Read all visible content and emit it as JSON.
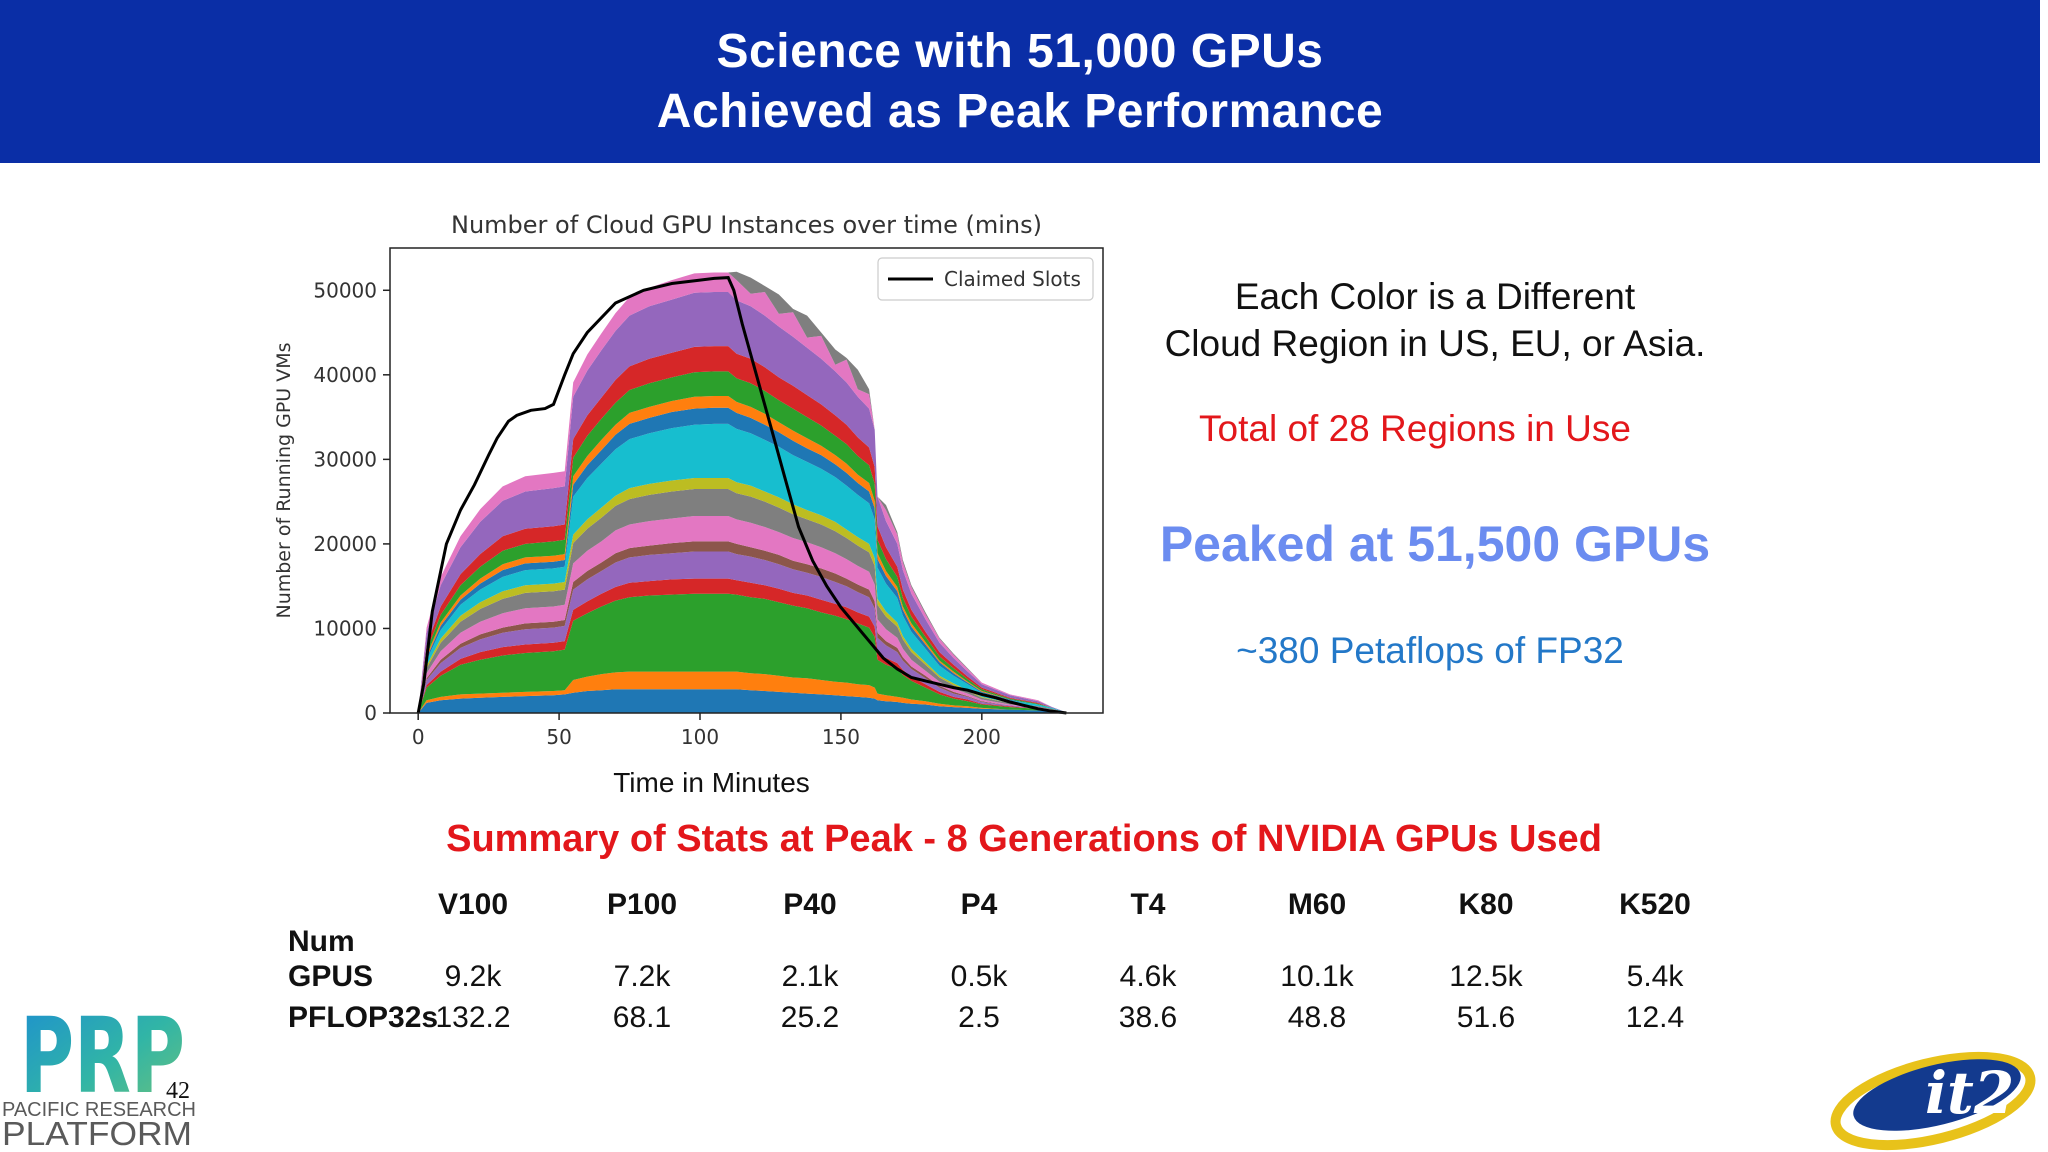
{
  "header": {
    "title_line1": "Science with 51,000 GPUs",
    "title_line2": "Achieved as Peak Performance"
  },
  "chart_data": {
    "type": "area",
    "title": "Number of Cloud GPU Instances over time (mins)",
    "ylabel": "Number of Running GPU VMs",
    "xlabel": "Time in Minutes",
    "xlim": [
      -10,
      243
    ],
    "ylim": [
      0,
      55000
    ],
    "xticks": [
      0,
      50,
      100,
      150,
      200
    ],
    "yticks": [
      0,
      10000,
      20000,
      30000,
      40000,
      50000
    ],
    "legend": {
      "label": "Claimed Slots",
      "position": "top-right"
    },
    "x": [
      0,
      3,
      8,
      15,
      22,
      30,
      38,
      48,
      52,
      55,
      60,
      65,
      70,
      75,
      82,
      90,
      98,
      105,
      110,
      113,
      118,
      123,
      128,
      133,
      138,
      143,
      148,
      152,
      156,
      160,
      162,
      163,
      166,
      170,
      172,
      175,
      180,
      185,
      190,
      195,
      200,
      210,
      220,
      225,
      230
    ],
    "series": [
      {
        "color": "#1f77b4",
        "values": [
          0,
          1200,
          1500,
          1700,
          1800,
          1900,
          2000,
          2100,
          2200,
          2400,
          2600,
          2700,
          2800,
          2800,
          2800,
          2800,
          2800,
          2800,
          2800,
          2800,
          2700,
          2600,
          2500,
          2400,
          2300,
          2200,
          2100,
          2000,
          1900,
          1800,
          1700,
          1500,
          1400,
          1300,
          1200,
          1100,
          1000,
          800,
          700,
          600,
          500,
          400,
          300,
          200,
          100
        ]
      },
      {
        "color": "#ff7f0e",
        "values": [
          0,
          300,
          400,
          500,
          500,
          500,
          500,
          500,
          500,
          1500,
          1700,
          1900,
          2000,
          2100,
          2100,
          2100,
          2100,
          2100,
          2100,
          2100,
          2000,
          2000,
          1900,
          1800,
          1800,
          1700,
          1600,
          1600,
          1500,
          1500,
          1300,
          800,
          700,
          600,
          600,
          500,
          400,
          300,
          200,
          200,
          100,
          0,
          0,
          0,
          0
        ]
      },
      {
        "color": "#2ca02c",
        "values": [
          0,
          1500,
          2500,
          3500,
          4000,
          4400,
          4600,
          4700,
          4800,
          7000,
          7500,
          8000,
          8500,
          8800,
          9000,
          9100,
          9200,
          9200,
          9200,
          9100,
          9000,
          8900,
          8700,
          8500,
          8300,
          8000,
          7800,
          7500,
          7200,
          6800,
          6000,
          4000,
          3600,
          3300,
          2700,
          2200,
          1600,
          1100,
          800,
          600,
          400,
          300,
          200,
          200,
          0
        ]
      },
      {
        "color": "#d62728",
        "values": [
          0,
          300,
          500,
          700,
          900,
          1000,
          1000,
          1000,
          1000,
          1300,
          1400,
          1500,
          1600,
          1700,
          1700,
          1800,
          1800,
          1800,
          1800,
          1700,
          1700,
          1600,
          1600,
          1500,
          1500,
          1500,
          1400,
          1400,
          1300,
          1300,
          1200,
          900,
          800,
          700,
          600,
          500,
          400,
          300,
          200,
          200,
          100,
          100,
          0,
          0,
          0
        ]
      },
      {
        "color": "#9467bd",
        "values": [
          0,
          600,
          1000,
          1300,
          1500,
          1700,
          1800,
          1800,
          1800,
          2400,
          2600,
          2700,
          2900,
          3000,
          3100,
          3100,
          3200,
          3200,
          3200,
          3100,
          3100,
          3000,
          2900,
          2800,
          2700,
          2700,
          2600,
          2500,
          2400,
          2300,
          2200,
          1700,
          1500,
          1300,
          1100,
          900,
          700,
          500,
          400,
          300,
          200,
          100,
          100,
          0,
          0
        ]
      },
      {
        "color": "#8c564b",
        "values": [
          0,
          200,
          400,
          500,
          600,
          600,
          700,
          700,
          700,
          900,
          1000,
          1000,
          1100,
          1100,
          1100,
          1200,
          1200,
          1200,
          1200,
          1200,
          1100,
          1100,
          1100,
          1000,
          1000,
          1000,
          1000,
          900,
          900,
          900,
          800,
          600,
          500,
          500,
          400,
          300,
          300,
          200,
          200,
          100,
          100,
          0,
          0,
          0,
          0
        ]
      },
      {
        "color": "#e377c2",
        "values": [
          0,
          600,
          1000,
          1300,
          1500,
          1700,
          1800,
          1800,
          1800,
          2200,
          2400,
          2500,
          2700,
          2800,
          2900,
          2900,
          3000,
          3000,
          3000,
          2900,
          2900,
          2800,
          2700,
          2700,
          2600,
          2500,
          2400,
          2300,
          2200,
          2100,
          2000,
          1600,
          1400,
          1200,
          1000,
          800,
          600,
          500,
          400,
          300,
          200,
          100,
          100,
          0,
          0
        ]
      },
      {
        "color": "#7f7f7f",
        "values": [
          0,
          600,
          1000,
          1300,
          1500,
          1700,
          1800,
          1800,
          1800,
          2400,
          2600,
          2800,
          2900,
          3000,
          3100,
          3200,
          3200,
          3200,
          3200,
          3100,
          3100,
          3000,
          2900,
          2800,
          2700,
          2700,
          2600,
          2500,
          2400,
          2300,
          2200,
          1700,
          1500,
          1300,
          1100,
          900,
          700,
          500,
          400,
          300,
          200,
          200,
          100,
          100,
          0
        ]
      },
      {
        "color": "#bcbd22",
        "values": [
          0,
          300,
          500,
          700,
          800,
          900,
          900,
          900,
          900,
          1000,
          1100,
          1200,
          1200,
          1300,
          1300,
          1300,
          1300,
          1300,
          1300,
          1300,
          1300,
          1200,
          1200,
          1200,
          1100,
          1100,
          1100,
          1000,
          1000,
          1000,
          900,
          700,
          600,
          500,
          400,
          400,
          300,
          200,
          200,
          100,
          100,
          0,
          0,
          0,
          0
        ]
      },
      {
        "color": "#17becf",
        "values": [
          0,
          600,
          1000,
          1300,
          1500,
          1700,
          1800,
          1800,
          1800,
          4500,
          4900,
          5200,
          5500,
          5800,
          6000,
          6200,
          6300,
          6400,
          6400,
          6300,
          6200,
          6100,
          6000,
          5800,
          5700,
          5500,
          5300,
          5200,
          5000,
          4800,
          4600,
          3700,
          3300,
          2900,
          2400,
          2000,
          1600,
          1200,
          900,
          700,
          500,
          300,
          200,
          100,
          0
        ]
      },
      {
        "color": "#1f77b4",
        "values": [
          0,
          300,
          500,
          600,
          700,
          800,
          800,
          800,
          800,
          1400,
          1500,
          1600,
          1700,
          1800,
          1800,
          1900,
          1900,
          1900,
          1900,
          1900,
          1800,
          1800,
          1700,
          1700,
          1600,
          1600,
          1500,
          1500,
          1400,
          1400,
          1300,
          1000,
          900,
          800,
          700,
          600,
          500,
          400,
          300,
          200,
          100,
          100,
          0,
          0,
          0
        ]
      },
      {
        "color": "#ff7f0e",
        "values": [
          0,
          300,
          400,
          500,
          600,
          700,
          700,
          700,
          700,
          1000,
          1100,
          1200,
          1200,
          1300,
          1300,
          1300,
          1400,
          1400,
          1400,
          1300,
          1300,
          1300,
          1200,
          1200,
          1200,
          1100,
          1100,
          1100,
          1000,
          1000,
          900,
          700,
          600,
          500,
          400,
          400,
          300,
          200,
          200,
          100,
          100,
          0,
          0,
          0,
          0
        ]
      },
      {
        "color": "#2ca02c",
        "values": [
          0,
          600,
          900,
          1200,
          1400,
          1600,
          1600,
          1700,
          1700,
          2200,
          2400,
          2500,
          2600,
          2700,
          2800,
          2800,
          2900,
          2900,
          2900,
          2800,
          2800,
          2700,
          2600,
          2600,
          2500,
          2400,
          2300,
          2300,
          2200,
          2100,
          2000,
          1600,
          1400,
          1200,
          1000,
          800,
          600,
          500,
          400,
          300,
          200,
          100,
          100,
          0,
          0
        ]
      },
      {
        "color": "#d62728",
        "values": [
          0,
          600,
          1000,
          1300,
          1500,
          1700,
          1800,
          1800,
          1800,
          2200,
          2400,
          2500,
          2700,
          2800,
          2900,
          2900,
          3000,
          3000,
          3000,
          2900,
          2900,
          2800,
          2700,
          2700,
          2600,
          2500,
          2400,
          2300,
          2200,
          2100,
          2000,
          1600,
          1400,
          1200,
          1000,
          800,
          600,
          500,
          400,
          300,
          200,
          100,
          100,
          0,
          0
        ]
      },
      {
        "color": "#9467bd",
        "values": [
          0,
          1500,
          2500,
          3200,
          3800,
          4200,
          4400,
          4500,
          4500,
          5000,
          5300,
          5600,
          5800,
          6000,
          6200,
          6300,
          6400,
          6400,
          6400,
          6300,
          6200,
          6100,
          6000,
          5800,
          5600,
          5400,
          5200,
          5000,
          4800,
          4600,
          4400,
          3500,
          3100,
          2700,
          2300,
          1900,
          1500,
          1100,
          800,
          600,
          400,
          300,
          200,
          100,
          0
        ]
      },
      {
        "color": "#e377c2",
        "values": [
          0,
          600,
          1000,
          1300,
          1500,
          1700,
          1800,
          1800,
          1800,
          1700,
          1900,
          2000,
          2100,
          2200,
          2200,
          2300,
          2300,
          2300,
          2300,
          2400,
          1500,
          2800,
          1500,
          2900,
          1200,
          2700,
          800,
          2700,
          900,
          1700,
          0,
          0,
          1300,
          1100,
          900,
          800,
          600,
          500,
          400,
          300,
          200,
          100,
          100,
          0,
          0
        ]
      },
      {
        "color": "#7f7f7f",
        "values": [
          0,
          0,
          0,
          0,
          0,
          0,
          0,
          0,
          0,
          0,
          0,
          0,
          0,
          0,
          0,
          0,
          0,
          0,
          0,
          1000,
          1900,
          700,
          2300,
          400,
          2600,
          400,
          1800,
          200,
          2300,
          600,
          0,
          0,
          600,
          300,
          300,
          200,
          200,
          100,
          100,
          100,
          0,
          0,
          0,
          0,
          0
        ]
      }
    ],
    "claimed_slots": {
      "x": [
        0,
        2,
        5,
        10,
        15,
        20,
        25,
        28,
        32,
        35,
        40,
        45,
        48,
        52,
        55,
        60,
        70,
        80,
        90,
        100,
        105,
        110,
        112,
        115,
        120,
        125,
        130,
        135,
        140,
        145,
        150,
        155,
        160,
        165,
        170,
        175,
        180,
        185,
        190,
        195,
        200,
        205,
        210,
        215,
        220,
        225,
        230
      ],
      "values": [
        0,
        3500,
        12000,
        20000,
        24000,
        27000,
        30500,
        32500,
        34500,
        35200,
        35800,
        36000,
        36500,
        40000,
        42500,
        45000,
        48500,
        50000,
        50800,
        51200,
        51400,
        51500,
        50000,
        46000,
        40000,
        34000,
        28000,
        22000,
        18000,
        15000,
        12500,
        10500,
        8500,
        6500,
        5200,
        4200,
        3800,
        3400,
        3000,
        2700,
        2200,
        1800,
        1300,
        900,
        500,
        200,
        0
      ]
    }
  },
  "side_notes": {
    "note_line1": "Each Color is a Different",
    "note_line2": "Cloud Region in US, EU, or Asia.",
    "regions": "Total of 28 Regions in Use",
    "peak": "Peaked at 51,500 GPUs",
    "petaflops": "~380 Petaflops of FP32"
  },
  "summary": {
    "title": "Summary of Stats at Peak - 8 Generations of NVIDIA GPUs Used",
    "row_label_num_line1": "Num",
    "row_label_num_line2": "GPUS",
    "row_label_pflop": "PFLOP32s",
    "columns": [
      "V100",
      "P100",
      "P40",
      "P4",
      "T4",
      "M60",
      "K80",
      "K520"
    ],
    "num_gpus": [
      "9.2k",
      "7.2k",
      "2.1k",
      "0.5k",
      "4.6k",
      "10.1k",
      "12.5k",
      "5.4k"
    ],
    "pflop32s": [
      "132.2",
      "68.1",
      "25.2",
      "2.5",
      "38.6",
      "48.8",
      "51.6",
      "12.4"
    ]
  },
  "footer": {
    "slide_number": "42",
    "prp_logo_text": "PRP",
    "prp_logo_line1": "PACIFIC RESEARCH",
    "prp_logo_line2": "PLATFORM",
    "it2_logo_text": "it2"
  },
  "colors": {
    "header_bg": "#0a2ea6",
    "red": "#e3171b",
    "peak_blue": "#6b8cf0",
    "petaflops_blue": "#2378c8"
  }
}
